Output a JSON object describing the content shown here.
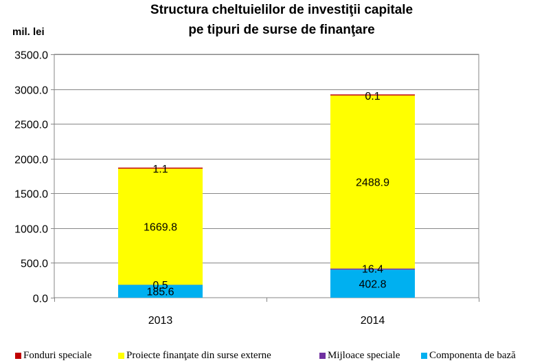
{
  "chart_data": {
    "type": "bar",
    "stacked": true,
    "title_lines": [
      "Structura cheltuielilor de investiţii capitale",
      "pe tipuri de surse de finanţare"
    ],
    "unit_label": "mil. lei",
    "categories": [
      "2013",
      "2014"
    ],
    "ylim": [
      0,
      3500
    ],
    "yticks": [
      "0.0",
      "500.0",
      "1000.0",
      "1500.0",
      "2000.0",
      "2500.0",
      "3000.0",
      "3500.0"
    ],
    "grid": true,
    "legend_position": "bottom",
    "series": [
      {
        "name": "Componenta de bază",
        "color": "#00B0F0",
        "values": [
          185.6,
          402.8
        ],
        "labels": [
          "185.6",
          "402.8"
        ]
      },
      {
        "name": "Mijloace speciale",
        "color": "#7030A0",
        "values": [
          0.5,
          16.4
        ],
        "labels": [
          "0.5",
          "16.4"
        ]
      },
      {
        "name": "Proiecte finanţate din surse externe",
        "color": "#FFFF00",
        "values": [
          1669.8,
          2488.9
        ],
        "labels": [
          "1669.8",
          "2488.9"
        ]
      },
      {
        "name": "Fonduri speciale",
        "color": "#C00000",
        "values": [
          1.1,
          0.1
        ],
        "labels": [
          "1.1",
          "0.1"
        ]
      }
    ],
    "legend_order": [
      "Fonduri speciale",
      "Proiecte finanţate din surse externe",
      "Mijloace speciale",
      "Componenta de bază"
    ]
  }
}
